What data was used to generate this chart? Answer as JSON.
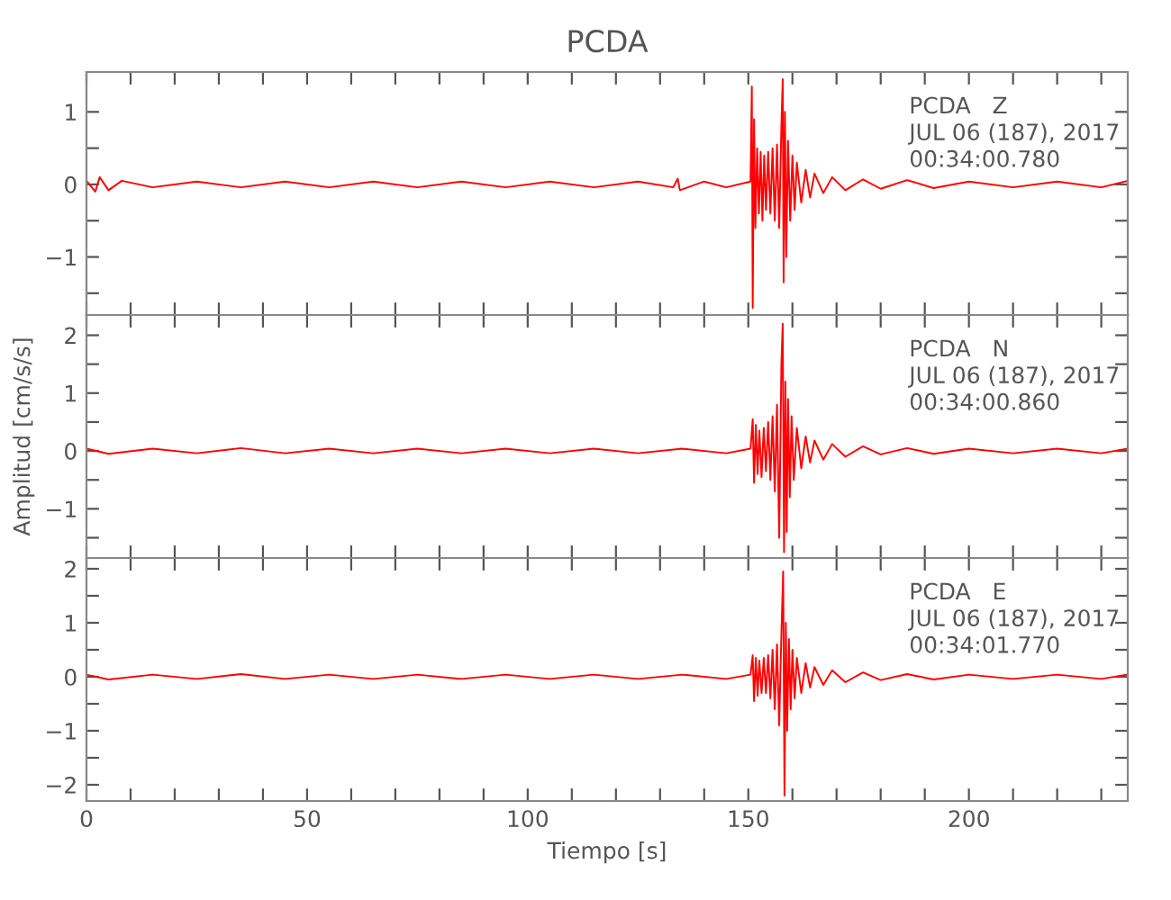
{
  "chart_data": [
    {
      "type": "line",
      "title": "PCDA",
      "annotations": [
        "PCDA   Z",
        "JUL 06 (187), 2017",
        "00:34:00.780"
      ],
      "tick_labels": "y",
      "grid": false,
      "xlim": [
        0,
        236
      ],
      "xticks": [
        {
          "value": 0,
          "label": null
        },
        {
          "value": 10,
          "label": null
        },
        {
          "value": 20,
          "label": null
        },
        {
          "value": 30,
          "label": null
        },
        {
          "value": 40,
          "label": null
        },
        {
          "value": 50,
          "label": null
        },
        {
          "value": 60,
          "label": null
        },
        {
          "value": 70,
          "label": null
        },
        {
          "value": 80,
          "label": null
        },
        {
          "value": 90,
          "label": null
        },
        {
          "value": 100,
          "label": null
        },
        {
          "value": 110,
          "label": null
        },
        {
          "value": 120,
          "label": null
        },
        {
          "value": 130,
          "label": null
        },
        {
          "value": 140,
          "label": null
        },
        {
          "value": 150,
          "label": null
        },
        {
          "value": 160,
          "label": null
        },
        {
          "value": 170,
          "label": null
        },
        {
          "value": 180,
          "label": null
        },
        {
          "value": 190,
          "label": null
        },
        {
          "value": 200,
          "label": null
        },
        {
          "value": 210,
          "label": null
        },
        {
          "value": 220,
          "label": null
        },
        {
          "value": 230,
          "label": null
        }
      ],
      "ylim": [
        -1.8,
        1.55
      ],
      "yticks": [
        {
          "value": -1.5,
          "label": null
        },
        {
          "value": -1,
          "label": "−1"
        },
        {
          "value": -0.5,
          "label": null
        },
        0,
        {
          "value": 0.5,
          "label": null
        },
        1
      ],
      "x": [
        0,
        2,
        3,
        5,
        8,
        15,
        25,
        35,
        45,
        55,
        65,
        75,
        85,
        95,
        105,
        115,
        125,
        133,
        134,
        134.5,
        140,
        145,
        150.5,
        150.8,
        151,
        151.3,
        151.6,
        152,
        152.4,
        152.8,
        153.2,
        153.6,
        154,
        154.5,
        155,
        155.5,
        156,
        156.5,
        157,
        157.5,
        157.8,
        158,
        158.3,
        158.6,
        159,
        159.5,
        160,
        160.5,
        161,
        162,
        163,
        164,
        165,
        167,
        169,
        172,
        176,
        180,
        186,
        192,
        200,
        210,
        220,
        230,
        236
      ],
      "series": [
        {
          "color": "#ff0000",
          "values": [
            0.05,
            -0.1,
            0.1,
            -0.08,
            0.05,
            -0.04,
            0.04,
            -0.04,
            0.04,
            -0.04,
            0.04,
            -0.04,
            0.04,
            -0.04,
            0.04,
            -0.04,
            0.04,
            -0.04,
            0.08,
            -0.08,
            0.04,
            -0.04,
            0.04,
            1.35,
            -1.7,
            0.9,
            -0.6,
            0.5,
            -0.4,
            0.45,
            -0.5,
            0.4,
            -0.35,
            0.45,
            -0.4,
            0.5,
            -0.5,
            0.55,
            -0.6,
            0.8,
            1.45,
            -1.35,
            1.0,
            -1.0,
            0.6,
            -0.5,
            0.4,
            -0.35,
            0.3,
            -0.25,
            0.2,
            -0.18,
            0.15,
            -0.12,
            0.1,
            -0.08,
            0.07,
            -0.06,
            0.06,
            -0.05,
            0.04,
            -0.04,
            0.04,
            -0.04,
            0.05
          ]
        }
      ]
    },
    {
      "type": "line",
      "ylabel": "Amplitud [cm/s/s]",
      "annotations": [
        "PCDA   N",
        "JUL 06 (187), 2017",
        "00:34:00.860"
      ],
      "tick_labels": "y",
      "grid": false,
      "xlim": [
        0,
        236
      ],
      "xticks": [
        {
          "value": 0,
          "label": null
        },
        {
          "value": 10,
          "label": null
        },
        {
          "value": 20,
          "label": null
        },
        {
          "value": 30,
          "label": null
        },
        {
          "value": 40,
          "label": null
        },
        {
          "value": 50,
          "label": null
        },
        {
          "value": 60,
          "label": null
        },
        {
          "value": 70,
          "label": null
        },
        {
          "value": 80,
          "label": null
        },
        {
          "value": 90,
          "label": null
        },
        {
          "value": 100,
          "label": null
        },
        {
          "value": 110,
          "label": null
        },
        {
          "value": 120,
          "label": null
        },
        {
          "value": 130,
          "label": null
        },
        {
          "value": 140,
          "label": null
        },
        {
          "value": 150,
          "label": null
        },
        {
          "value": 160,
          "label": null
        },
        {
          "value": 170,
          "label": null
        },
        {
          "value": 180,
          "label": null
        },
        {
          "value": 190,
          "label": null
        },
        {
          "value": 200,
          "label": null
        },
        {
          "value": 210,
          "label": null
        },
        {
          "value": 220,
          "label": null
        },
        {
          "value": 230,
          "label": null
        }
      ],
      "ylim": [
        -1.85,
        2.35
      ],
      "yticks": [
        {
          "value": -1.5,
          "label": null
        },
        {
          "value": -1,
          "label": "−1"
        },
        {
          "value": -0.5,
          "label": null
        },
        0,
        {
          "value": 0.5,
          "label": null
        },
        1,
        {
          "value": 1.5,
          "label": null
        },
        2
      ],
      "x": [
        0,
        5,
        15,
        25,
        35,
        45,
        55,
        65,
        75,
        85,
        95,
        105,
        115,
        125,
        135,
        145,
        150.5,
        151,
        151.3,
        151.7,
        152.1,
        152.5,
        153,
        153.5,
        154,
        154.5,
        155,
        155.5,
        156,
        156.5,
        157,
        157.5,
        157.8,
        158.1,
        158.4,
        158.7,
        159,
        159.4,
        159.8,
        160.3,
        161,
        162,
        163,
        164,
        165,
        167,
        169,
        172,
        176,
        180,
        186,
        192,
        200,
        210,
        220,
        230,
        236
      ],
      "series": [
        {
          "color": "#ff0000",
          "values": [
            0.04,
            -0.05,
            0.04,
            -0.04,
            0.05,
            -0.04,
            0.04,
            -0.04,
            0.04,
            -0.04,
            0.04,
            -0.04,
            0.04,
            -0.04,
            0.04,
            -0.04,
            0.04,
            0.55,
            -0.55,
            0.45,
            -0.4,
            0.35,
            -0.45,
            0.4,
            -0.35,
            0.5,
            -0.5,
            0.6,
            -0.7,
            0.8,
            -1.5,
            1.5,
            2.2,
            -1.75,
            1.2,
            -1.4,
            0.9,
            -0.8,
            0.6,
            -0.5,
            0.4,
            -0.3,
            0.25,
            -0.2,
            0.18,
            -0.15,
            0.12,
            -0.1,
            0.08,
            -0.06,
            0.05,
            -0.05,
            0.04,
            -0.04,
            0.04,
            -0.04,
            0.04
          ]
        }
      ]
    },
    {
      "type": "line",
      "xlabel": "Tiempo [s]",
      "annotations": [
        "PCDA   E",
        "JUL 06 (187), 2017",
        "00:34:01.770"
      ],
      "grid": false,
      "xlim": [
        0,
        236
      ],
      "xticks": [
        0,
        {
          "value": 10,
          "label": null
        },
        {
          "value": 20,
          "label": null
        },
        {
          "value": 30,
          "label": null
        },
        {
          "value": 40,
          "label": null
        },
        50,
        {
          "value": 60,
          "label": null
        },
        {
          "value": 70,
          "label": null
        },
        {
          "value": 80,
          "label": null
        },
        {
          "value": 90,
          "label": null
        },
        100,
        {
          "value": 110,
          "label": null
        },
        {
          "value": 120,
          "label": null
        },
        {
          "value": 130,
          "label": null
        },
        {
          "value": 140,
          "label": null
        },
        150,
        {
          "value": 160,
          "label": null
        },
        {
          "value": 170,
          "label": null
        },
        {
          "value": 180,
          "label": null
        },
        {
          "value": 190,
          "label": null
        },
        200,
        {
          "value": 210,
          "label": null
        },
        {
          "value": 220,
          "label": null
        },
        {
          "value": 230,
          "label": null
        }
      ],
      "ylim": [
        -2.3,
        2.2
      ],
      "yticks": [
        {
          "value": -2,
          "label": "−2"
        },
        {
          "value": -1.5,
          "label": null
        },
        {
          "value": -1,
          "label": "−1"
        },
        {
          "value": -0.5,
          "label": null
        },
        0,
        {
          "value": 0.5,
          "label": null
        },
        1,
        {
          "value": 1.5,
          "label": null
        },
        2
      ],
      "x": [
        0,
        5,
        15,
        25,
        35,
        45,
        55,
        65,
        75,
        85,
        95,
        105,
        115,
        125,
        135,
        145,
        150.5,
        151,
        151.3,
        151.7,
        152.1,
        152.5,
        153,
        153.5,
        154,
        154.5,
        155,
        155.5,
        156,
        156.5,
        157,
        157.5,
        157.9,
        158.2,
        158.5,
        158.8,
        159.2,
        159.6,
        160,
        160.5,
        161,
        162,
        163,
        164,
        165,
        167,
        169,
        172,
        176,
        180,
        186,
        192,
        200,
        210,
        220,
        230,
        236
      ],
      "series": [
        {
          "color": "#ff0000",
          "values": [
            0.04,
            -0.05,
            0.04,
            -0.04,
            0.05,
            -0.04,
            0.04,
            -0.04,
            0.04,
            -0.04,
            0.04,
            -0.04,
            0.04,
            -0.04,
            0.04,
            -0.04,
            0.04,
            0.4,
            -0.45,
            0.35,
            -0.35,
            0.3,
            -0.3,
            0.35,
            -0.3,
            0.4,
            -0.4,
            0.5,
            -0.6,
            0.6,
            -0.9,
            0.8,
            1.95,
            -2.2,
            1.0,
            -1.0,
            0.7,
            -0.6,
            0.5,
            -0.4,
            0.35,
            -0.3,
            0.25,
            -0.2,
            0.18,
            -0.15,
            0.12,
            -0.1,
            0.08,
            -0.06,
            0.05,
            -0.05,
            0.04,
            -0.04,
            0.04,
            -0.04,
            0.04
          ]
        }
      ]
    }
  ]
}
